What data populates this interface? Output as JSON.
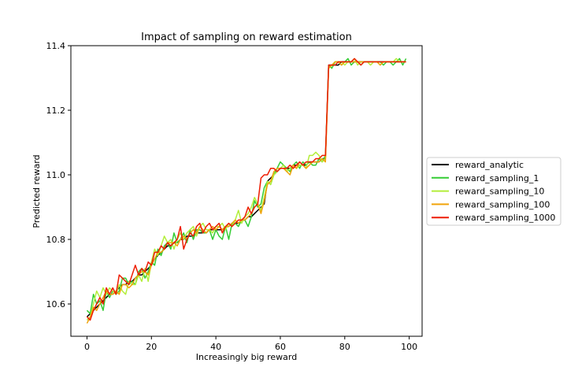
{
  "chart_data": {
    "type": "line",
    "title": "Impact of sampling on reward estimation",
    "xlabel": "Increasingly big reward",
    "ylabel": "Predicted reward",
    "xlim": [
      -5,
      104
    ],
    "ylim": [
      10.5,
      11.4
    ],
    "xticks": [
      0,
      20,
      40,
      60,
      80,
      100
    ],
    "yticks": [
      10.6,
      10.8,
      11.0,
      11.2,
      11.4
    ],
    "ytick_labels": [
      "10.6",
      "10.8",
      "11.0",
      "11.2",
      "11.4"
    ],
    "grid": false,
    "legend_position": "outside-right",
    "x": [
      0,
      1,
      2,
      3,
      4,
      5,
      6,
      7,
      8,
      9,
      10,
      11,
      12,
      13,
      14,
      15,
      16,
      17,
      18,
      19,
      20,
      21,
      22,
      23,
      24,
      25,
      26,
      27,
      28,
      29,
      30,
      31,
      32,
      33,
      34,
      35,
      36,
      37,
      38,
      39,
      40,
      41,
      42,
      43,
      44,
      45,
      46,
      47,
      48,
      49,
      50,
      51,
      52,
      53,
      54,
      55,
      56,
      57,
      58,
      59,
      60,
      61,
      62,
      63,
      64,
      65,
      66,
      67,
      68,
      69,
      70,
      71,
      72,
      73,
      74,
      75,
      76,
      77,
      78,
      79,
      80,
      81,
      82,
      83,
      84,
      85,
      86,
      87,
      88,
      89,
      90,
      91,
      92,
      93,
      94,
      95,
      96,
      97,
      98,
      99
    ],
    "series": [
      {
        "name": "reward_analytic",
        "color": "#000000",
        "values": [
          10.56,
          10.57,
          10.58,
          10.59,
          10.6,
          10.61,
          10.62,
          10.63,
          10.63,
          10.64,
          10.65,
          10.66,
          10.66,
          10.67,
          10.67,
          10.68,
          10.69,
          10.69,
          10.7,
          10.71,
          10.72,
          10.74,
          10.75,
          10.76,
          10.77,
          10.78,
          10.78,
          10.79,
          10.79,
          10.8,
          10.8,
          10.81,
          10.81,
          10.81,
          10.82,
          10.82,
          10.82,
          10.82,
          10.83,
          10.83,
          10.83,
          10.83,
          10.83,
          10.84,
          10.84,
          10.85,
          10.85,
          10.85,
          10.86,
          10.86,
          10.87,
          10.87,
          10.88,
          10.89,
          10.9,
          10.91,
          10.98,
          10.99,
          11.0,
          11.01,
          11.02,
          11.02,
          11.02,
          11.02,
          11.03,
          11.03,
          11.03,
          11.03,
          11.03,
          11.04,
          11.04,
          11.04,
          11.04,
          11.05,
          11.05,
          11.34,
          11.34,
          11.34,
          11.34,
          11.35,
          11.35,
          11.35,
          11.35,
          11.35,
          11.35,
          11.35,
          11.35,
          11.35,
          11.35,
          11.35,
          11.35,
          11.35,
          11.35,
          11.35,
          11.35,
          11.35,
          11.35,
          11.35,
          11.35,
          11.35
        ]
      },
      {
        "name": "reward_sampling_1",
        "color": "#33cc33",
        "values": [
          10.58,
          10.57,
          10.63,
          10.6,
          10.61,
          10.58,
          10.64,
          10.62,
          10.64,
          10.63,
          10.64,
          10.68,
          10.68,
          10.66,
          10.67,
          10.66,
          10.7,
          10.71,
          10.68,
          10.7,
          10.73,
          10.72,
          10.77,
          10.75,
          10.78,
          10.79,
          10.77,
          10.82,
          10.79,
          10.8,
          10.82,
          10.79,
          10.83,
          10.8,
          10.83,
          10.83,
          10.82,
          10.82,
          10.83,
          10.8,
          10.83,
          10.81,
          10.8,
          10.84,
          10.8,
          10.85,
          10.85,
          10.84,
          10.86,
          10.86,
          10.84,
          10.87,
          10.92,
          10.9,
          10.91,
          10.96,
          10.98,
          10.97,
          11.0,
          11.02,
          11.04,
          11.03,
          11.02,
          11.01,
          11.03,
          11.04,
          11.02,
          11.04,
          11.03,
          11.04,
          11.03,
          11.03,
          11.05,
          11.04,
          11.06,
          11.34,
          11.33,
          11.35,
          11.35,
          11.34,
          11.35,
          11.36,
          11.34,
          11.35,
          11.35,
          11.34,
          11.35,
          11.35,
          11.35,
          11.35,
          11.35,
          11.35,
          11.34,
          11.35,
          11.35,
          11.34,
          11.35,
          11.36,
          11.34,
          11.36
        ]
      },
      {
        "name": "reward_sampling_10",
        "color": "#b3ee3a",
        "values": [
          10.55,
          10.56,
          10.6,
          10.64,
          10.62,
          10.65,
          10.63,
          10.65,
          10.64,
          10.63,
          10.66,
          10.64,
          10.63,
          10.67,
          10.66,
          10.66,
          10.69,
          10.67,
          10.71,
          10.67,
          10.73,
          10.77,
          10.75,
          10.78,
          10.81,
          10.79,
          10.8,
          10.77,
          10.8,
          10.82,
          10.8,
          10.82,
          10.83,
          10.84,
          10.81,
          10.84,
          10.85,
          10.83,
          10.83,
          10.82,
          10.84,
          10.84,
          10.85,
          10.83,
          10.85,
          10.84,
          10.86,
          10.89,
          10.85,
          10.87,
          10.88,
          10.9,
          10.93,
          10.91,
          10.89,
          10.93,
          10.98,
          10.97,
          11.0,
          11.01,
          11.02,
          11.03,
          11.01,
          11.02,
          11.03,
          11.02,
          11.03,
          11.03,
          11.02,
          11.06,
          11.06,
          11.07,
          11.06,
          11.04,
          11.05,
          11.33,
          11.34,
          11.35,
          11.35,
          11.35,
          11.34,
          11.35,
          11.35,
          11.36,
          11.34,
          11.35,
          11.35,
          11.35,
          11.34,
          11.35,
          11.35,
          11.34,
          11.35,
          11.35,
          11.35,
          11.35,
          11.36,
          11.35,
          11.35,
          11.35
        ]
      },
      {
        "name": "reward_sampling_100",
        "color": "#f0a30a",
        "values": [
          10.54,
          10.56,
          10.59,
          10.58,
          10.6,
          10.62,
          10.64,
          10.63,
          10.63,
          10.64,
          10.63,
          10.66,
          10.66,
          10.65,
          10.66,
          10.68,
          10.69,
          10.7,
          10.7,
          10.69,
          10.72,
          10.74,
          10.76,
          10.76,
          10.77,
          10.79,
          10.79,
          10.79,
          10.78,
          10.8,
          10.81,
          10.8,
          10.82,
          10.83,
          10.82,
          10.84,
          10.83,
          10.82,
          10.83,
          10.84,
          10.83,
          10.84,
          10.83,
          10.84,
          10.84,
          10.85,
          10.86,
          10.85,
          10.86,
          10.86,
          10.87,
          10.88,
          10.9,
          10.91,
          10.88,
          10.92,
          10.97,
          10.98,
          11.01,
          11.02,
          11.02,
          11.02,
          11.01,
          11.0,
          11.03,
          11.02,
          11.04,
          11.03,
          11.02,
          11.03,
          11.04,
          11.04,
          11.04,
          11.05,
          11.04,
          11.33,
          11.34,
          11.35,
          11.35,
          11.34,
          11.35,
          11.35,
          11.35,
          11.35,
          11.35,
          11.35,
          11.35,
          11.35,
          11.35,
          11.35,
          11.35,
          11.34,
          11.35,
          11.35,
          11.35,
          11.35,
          11.35,
          11.35,
          11.35,
          11.35
        ]
      },
      {
        "name": "reward_sampling_1000",
        "color": "#ee1c00",
        "values": [
          10.56,
          10.55,
          10.58,
          10.6,
          10.62,
          10.6,
          10.65,
          10.63,
          10.65,
          10.63,
          10.69,
          10.68,
          10.67,
          10.66,
          10.69,
          10.72,
          10.69,
          10.71,
          10.7,
          10.73,
          10.72,
          10.76,
          10.76,
          10.78,
          10.77,
          10.79,
          10.78,
          10.79,
          10.8,
          10.84,
          10.77,
          10.8,
          10.82,
          10.81,
          10.84,
          10.85,
          10.82,
          10.84,
          10.85,
          10.83,
          10.84,
          10.85,
          10.82,
          10.84,
          10.85,
          10.84,
          10.85,
          10.86,
          10.86,
          10.87,
          10.9,
          10.88,
          10.9,
          10.91,
          10.99,
          11.0,
          11.0,
          11.02,
          11.02,
          11.01,
          11.02,
          11.02,
          11.02,
          11.03,
          11.02,
          11.03,
          11.04,
          11.03,
          11.04,
          11.04,
          11.04,
          11.05,
          11.05,
          11.06,
          11.06,
          11.34,
          11.34,
          11.34,
          11.35,
          11.35,
          11.35,
          11.35,
          11.35,
          11.36,
          11.35,
          11.34,
          11.35,
          11.35,
          11.35,
          11.35,
          11.35,
          11.35,
          11.35,
          11.35,
          11.35,
          11.35,
          11.35,
          11.35,
          11.35,
          11.35
        ]
      }
    ]
  }
}
